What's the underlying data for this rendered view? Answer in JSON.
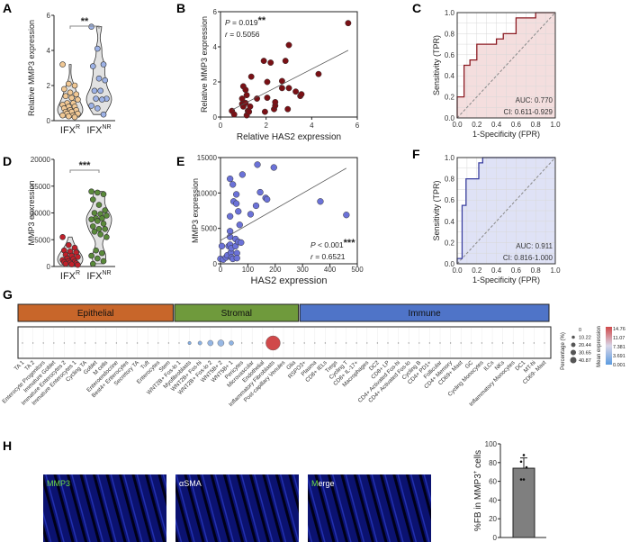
{
  "panels": {
    "A": "A",
    "B": "B",
    "C": "C",
    "D": "D",
    "E": "E",
    "F": "F",
    "G": "G",
    "H": "H"
  },
  "chart_data": [
    {
      "id": "A",
      "type": "violin",
      "ylabel": "Relative MMP3 expression",
      "ylim": [
        0,
        6
      ],
      "yticks": [
        0,
        2,
        4,
        6
      ],
      "categories": [
        "IFX",
        "IFX"
      ],
      "category_sup": [
        "R",
        "NR"
      ],
      "significance": "**",
      "series": [
        {
          "values": [
            3.2,
            2.1,
            2.0,
            1.8,
            1.6,
            1.5,
            1.4,
            1.3,
            1.2,
            1.0,
            1.0,
            0.9,
            0.8,
            0.8,
            0.7,
            0.6,
            0.6,
            0.5,
            0.5,
            0.4,
            0.4,
            0.3,
            0.3,
            0.25,
            0.2
          ],
          "color": "#f1c894"
        },
        {
          "values": [
            5.35,
            4.1,
            3.2,
            3.1,
            2.4,
            2.3,
            1.7,
            1.7,
            1.25,
            1.25,
            1.2,
            0.85,
            0.7,
            0.35
          ],
          "color": "#9db2e6"
        }
      ]
    },
    {
      "id": "B",
      "type": "scatter",
      "xlabel": "Relative HAS2 expression",
      "ylabel": "Relative MMP3 expression",
      "xlim": [
        0,
        6
      ],
      "ylim": [
        0,
        6
      ],
      "xticks": [
        0,
        2,
        4,
        6
      ],
      "yticks": [
        0,
        2,
        4,
        6
      ],
      "annotation": {
        "p": "P",
        "p_value": " = 0.019",
        "stars": "**",
        "r": "r",
        "r_value": " = 0.5056"
      },
      "color": "#7a1015",
      "points": [
        [
          0.5,
          0.35
        ],
        [
          0.6,
          0.15
        ],
        [
          0.95,
          1.05
        ],
        [
          1,
          1.75
        ],
        [
          0.95,
          0.75
        ],
        [
          1,
          0.6
        ],
        [
          1.1,
          0.8
        ],
        [
          1.1,
          1.55
        ],
        [
          1.15,
          1.25
        ],
        [
          1.15,
          0.1
        ],
        [
          1.2,
          0.35
        ],
        [
          1.25,
          0.3
        ],
        [
          1.3,
          0.6
        ],
        [
          1.35,
          2.3
        ],
        [
          1.6,
          1.05
        ],
        [
          1.9,
          3.2
        ],
        [
          1.95,
          0.3
        ],
        [
          2.05,
          2.0
        ],
        [
          2.05,
          1.1
        ],
        [
          2.2,
          3.1
        ],
        [
          2.35,
          0.45
        ],
        [
          2.4,
          0.65
        ],
        [
          2.4,
          0.85
        ],
        [
          2.7,
          2.05
        ],
        [
          2.7,
          1.65
        ],
        [
          2.85,
          3.2
        ],
        [
          3.0,
          4.1
        ],
        [
          3.0,
          1.65
        ],
        [
          2.95,
          0.45
        ],
        [
          3.3,
          1.45
        ],
        [
          3.5,
          1.2
        ],
        [
          3.55,
          1.3
        ],
        [
          4.3,
          2.45
        ],
        [
          5.6,
          5.35
        ]
      ],
      "fit": [
        [
          0.5,
          0.4
        ],
        [
          5.6,
          3.8
        ]
      ]
    },
    {
      "id": "C",
      "type": "roc",
      "xlabel": "1-Specificity (FPR)",
      "ylabel": "Sensitivity (TPR)",
      "xlim": [
        0,
        1
      ],
      "ylim": [
        0,
        1
      ],
      "ticks": [
        "0.0",
        "0.2",
        "0.4",
        "0.6",
        "0.8",
        "1.0"
      ],
      "auc": "AUC: 0.770",
      "ci": "CI: 0.611-0.929",
      "color": "#8b1a22",
      "fill": "#f4dede",
      "curve": [
        [
          0,
          0
        ],
        [
          0,
          0.2
        ],
        [
          0.07,
          0.2
        ],
        [
          0.07,
          0.5
        ],
        [
          0.13,
          0.5
        ],
        [
          0.13,
          0.55
        ],
        [
          0.2,
          0.55
        ],
        [
          0.2,
          0.7
        ],
        [
          0.4,
          0.7
        ],
        [
          0.4,
          0.75
        ],
        [
          0.47,
          0.75
        ],
        [
          0.47,
          0.8
        ],
        [
          0.6,
          0.8
        ],
        [
          0.6,
          0.95
        ],
        [
          0.8,
          0.95
        ],
        [
          0.8,
          1
        ],
        [
          1,
          1
        ]
      ]
    },
    {
      "id": "D",
      "type": "violin",
      "ylabel": "MMP3 epxression",
      "ylim": [
        0,
        20000
      ],
      "yticks": [
        0,
        5000,
        10000,
        15000,
        20000
      ],
      "categories": [
        "IFX",
        "IFX"
      ],
      "category_sup": [
        "R",
        "NR"
      ],
      "significance": "***",
      "series": [
        {
          "values": [
            5500,
            4000,
            3500,
            3000,
            2800,
            2600,
            2200,
            2000,
            1800,
            1500,
            1400,
            1200,
            1000,
            900,
            800,
            700,
            600,
            500,
            400,
            300
          ],
          "color": "#c0202a"
        },
        {
          "values": [
            14000,
            13800,
            13500,
            12500,
            11500,
            10500,
            10000,
            9800,
            9500,
            9000,
            9000,
            8800,
            8500,
            8000,
            7500,
            7000,
            7000,
            6500,
            6000,
            5500,
            3000,
            2500,
            2000,
            1500,
            1000,
            500
          ],
          "color": "#5a8a3a"
        }
      ]
    },
    {
      "id": "E",
      "type": "scatter",
      "xlabel": "HAS2 expression",
      "ylabel": "MMP3 expression",
      "xlim": [
        0,
        500
      ],
      "ylim": [
        0,
        15000
      ],
      "xticks": [
        0,
        100,
        200,
        300,
        400,
        500
      ],
      "yticks": [
        0,
        5000,
        10000,
        15000
      ],
      "annotation": {
        "p": "P",
        "p_value": " < 0.001",
        "stars": "***",
        "r": "r",
        "r_value": " = 0.6521"
      },
      "color": "#6b72d8",
      "points": [
        [
          0,
          700
        ],
        [
          5,
          2500
        ],
        [
          10,
          600
        ],
        [
          20,
          900
        ],
        [
          25,
          1200
        ],
        [
          30,
          2500
        ],
        [
          35,
          12000
        ],
        [
          35,
          6700
        ],
        [
          35,
          4600
        ],
        [
          35,
          3800
        ],
        [
          35,
          2700
        ],
        [
          38,
          1600
        ],
        [
          40,
          2200
        ],
        [
          40,
          900
        ],
        [
          45,
          11200
        ],
        [
          45,
          700
        ],
        [
          48,
          8800
        ],
        [
          55,
          3500
        ],
        [
          55,
          2500
        ],
        [
          58,
          9800
        ],
        [
          58,
          8500
        ],
        [
          60,
          1500
        ],
        [
          60,
          800
        ],
        [
          65,
          7400
        ],
        [
          65,
          3100
        ],
        [
          70,
          5500
        ],
        [
          75,
          3000
        ],
        [
          80,
          12600
        ],
        [
          110,
          7000
        ],
        [
          130,
          8200
        ],
        [
          135,
          14000
        ],
        [
          145,
          10100
        ],
        [
          165,
          9300
        ],
        [
          170,
          9100
        ],
        [
          195,
          13600
        ],
        [
          365,
          8800
        ],
        [
          460,
          6900
        ]
      ],
      "fit": [
        [
          0,
          3300
        ],
        [
          460,
          13500
        ]
      ]
    },
    {
      "id": "F",
      "type": "roc",
      "xlabel": "1-Specificity (FPR)",
      "ylabel": "Sensitivity (TPR)",
      "xlim": [
        0,
        1
      ],
      "ylim": [
        0,
        1
      ],
      "ticks": [
        "0.0",
        "0.2",
        "0.4",
        "0.6",
        "0.8",
        "1.0"
      ],
      "auc": "AUC: 0.911",
      "ci": "CI: 0.816-1.000",
      "color": "#3a3fa0",
      "fill": "#dfe2f6",
      "curve": [
        [
          0,
          0
        ],
        [
          0,
          0.05
        ],
        [
          0.05,
          0.05
        ],
        [
          0.05,
          0.55
        ],
        [
          0.09,
          0.55
        ],
        [
          0.09,
          0.8
        ],
        [
          0.22,
          0.8
        ],
        [
          0.22,
          0.95
        ],
        [
          0.26,
          0.95
        ],
        [
          0.26,
          1
        ],
        [
          1,
          1
        ]
      ]
    },
    {
      "id": "G",
      "type": "dotplot",
      "groups": [
        {
          "label": "Epithelial",
          "color": "#c8662a",
          "from": 0,
          "to": 14
        },
        {
          "label": "Stromal",
          "color": "#6f9a3c",
          "from": 15,
          "to": 26
        },
        {
          "label": "Immune",
          "color": "#4f74c8",
          "from": 27,
          "to": 50
        }
      ],
      "categories": [
        "TA 1",
        "TA 2",
        "Enterocyte Progenitors",
        "Immature Goblet",
        "Immature Enterocytes 2",
        "Immature Enterocytes 1",
        "Cycling TA",
        "Goblet",
        "M cells",
        "Enteroendocrine",
        "Best4+ Enterocytes",
        "Secretory TA",
        "Tuft",
        "Enterocytes",
        "Stem",
        "WNT2B+ Fos-lo 1",
        "Myofibroblasts",
        "WNT2B+ Fos-hi",
        "WNT2B+ Fos-lo 2",
        "WNT5B+ 2",
        "WNT5B+ 1",
        "Pericytes",
        "Microvascular",
        "Endothelial",
        "Inflammatory Fibroblasts",
        "Post-capillary Venules",
        "Glia",
        "RSPO3+",
        "Plasma",
        "CD8+ IELs",
        "Tregs",
        "Cycling T",
        "CD8+ IL-17+",
        "Macrophages",
        "DC2",
        "CD8+ LP",
        "CD4+ Activated Fos-hi",
        "CD4+ Activated Fos-lo",
        "Cycling B",
        "CD4+ PD1+",
        "Follicular",
        "CD4+ Memory",
        "CD69+ Mast",
        "GC",
        "Cycling Monocytes",
        "ILCs",
        "NKs",
        "Inflammatory Monocytes",
        "DC1",
        "MT-hi",
        "CD69- Mast"
      ],
      "highlight": {
        "16": [
          2,
          2.5
        ],
        "17": [
          3,
          2.8
        ],
        "18": [
          6,
          3.4
        ],
        "19": [
          8,
          3.6
        ],
        "20": [
          4,
          3.0
        ],
        "24": [
          40.87,
          14.76
        ]
      },
      "size_legend": {
        "title": "Percentage (%)",
        "values": [
          "0",
          "10.22",
          "20.44",
          "30.65",
          "40.87"
        ]
      },
      "color_legend": {
        "title": "Mean expression",
        "values": [
          "14.76",
          "11.07",
          "7.381",
          "3.691",
          "0.001"
        ],
        "low": "#5b9be0",
        "high": "#d0494a"
      }
    },
    {
      "id": "H",
      "type": "bar",
      "ylabel_pre": "%FB in MMP3",
      "ylabel_sup": "+",
      "ylabel_post": " cells",
      "ylim": [
        0,
        100
      ],
      "yticks": [
        0,
        20,
        40,
        60,
        80,
        100
      ],
      "value": 74,
      "error": 11,
      "points": [
        62,
        62,
        75,
        81,
        88
      ],
      "color": "#7f7f7f"
    }
  ],
  "images": [
    {
      "label": "MMP3",
      "label_color": "#6ede4a"
    },
    {
      "label": "αSMA",
      "label_color": "#ffffff"
    },
    {
      "label_a": "M",
      "label_b": "erge",
      "label_color": "#6ede4a"
    }
  ]
}
